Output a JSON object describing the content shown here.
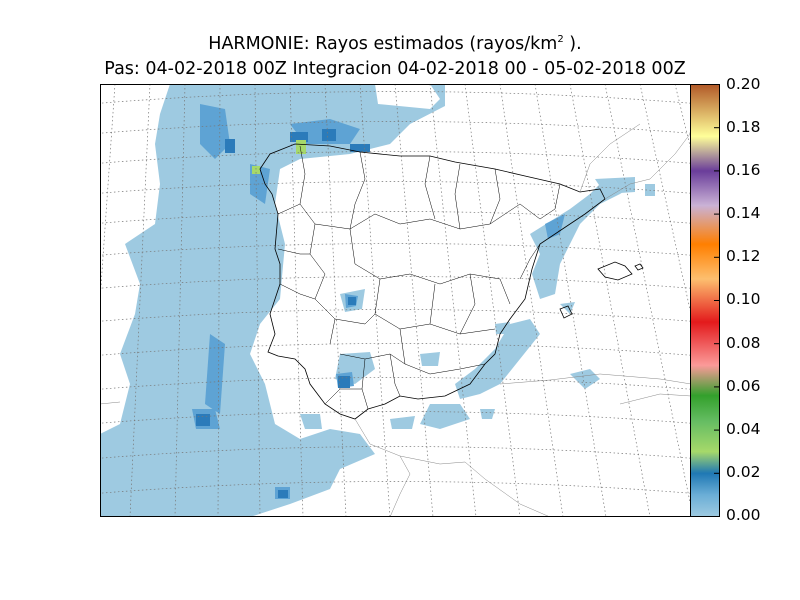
{
  "title": {
    "model": "HARMONIE",
    "main": "HARMONIE: Rayos estimados  (rayos/km",
    "sup": "2",
    "close": " ).",
    "line2": "Pas: 04-02-2018 00Z Integracion 04-02-2018 00 - 05-02-2018 00Z"
  },
  "colorbar": {
    "min": 0.0,
    "max": 0.2,
    "ticks": [
      "0.00",
      "0.02",
      "0.04",
      "0.06",
      "0.08",
      "0.10",
      "0.12",
      "0.14",
      "0.16",
      "0.18",
      "0.20"
    ],
    "stops": [
      "#9ecae1",
      "#4f9bd0",
      "#1f78b4",
      "#a6d96a",
      "#33a02c",
      "#fb9a99",
      "#e31a1c",
      "#fdbf6f",
      "#ff7f00",
      "#cab2d6",
      "#6a3d9a",
      "#ffff99",
      "#b15928"
    ]
  },
  "colors": {
    "precip_light": "#9ecae1",
    "precip_mid": "#5ea3d4",
    "precip_dark": "#2b7bba",
    "precip_green": "#a6d96a",
    "border": "#000000",
    "grid": "#777777"
  }
}
